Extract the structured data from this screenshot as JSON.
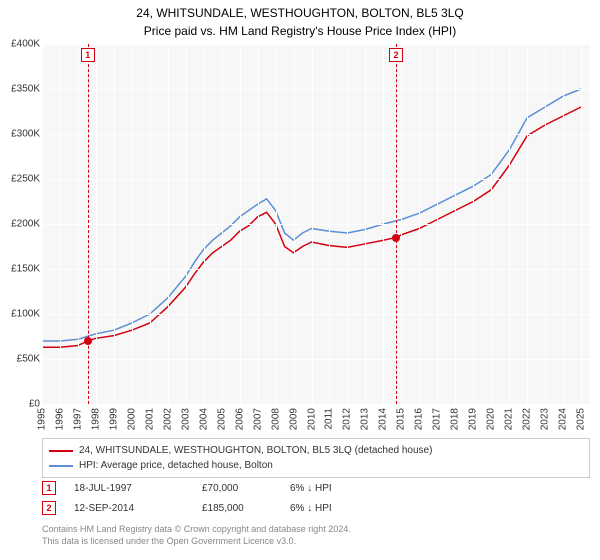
{
  "title": "24, WHITSUNDALE, WESTHOUGHTON, BOLTON, BL5 3LQ",
  "subtitle": "Price paid vs. HM Land Registry's House Price Index (HPI)",
  "chart": {
    "type": "line",
    "background_color": "#f7f7f7",
    "grid_color": "#ffffff",
    "xlim": [
      1995,
      2025.5
    ],
    "ylim": [
      0,
      400000
    ],
    "ytick_step": 50000,
    "yticks": [
      {
        "v": 0,
        "label": "£0"
      },
      {
        "v": 50000,
        "label": "£50K"
      },
      {
        "v": 100000,
        "label": "£100K"
      },
      {
        "v": 150000,
        "label": "£150K"
      },
      {
        "v": 200000,
        "label": "£200K"
      },
      {
        "v": 250000,
        "label": "£250K"
      },
      {
        "v": 300000,
        "label": "£300K"
      },
      {
        "v": 350000,
        "label": "£350K"
      },
      {
        "v": 400000,
        "label": "£400K"
      }
    ],
    "xticks": [
      1995,
      1996,
      1997,
      1998,
      1999,
      2000,
      2001,
      2002,
      2003,
      2004,
      2005,
      2006,
      2007,
      2008,
      2009,
      2010,
      2011,
      2012,
      2013,
      2014,
      2015,
      2016,
      2017,
      2018,
      2019,
      2020,
      2021,
      2022,
      2023,
      2024,
      2025
    ],
    "tick_fontsize": 10,
    "line_width": 1.5,
    "series": [
      {
        "name": "price_paid",
        "label": "24, WHITSUNDALE, WESTHOUGHTON, BOLTON, BL5 3LQ (detached house)",
        "color": "#d4000f",
        "x": [
          1995,
          1996,
          1997,
          1997.55,
          1998,
          1999,
          2000,
          2001,
          2002,
          2003,
          2003.5,
          2004,
          2004.5,
          2005,
          2005.5,
          2006,
          2006.5,
          2007,
          2007.5,
          2008,
          2008.5,
          2009,
          2009.5,
          2010,
          2011,
          2012,
          2013,
          2014,
          2014.7,
          2015,
          2016,
          2017,
          2018,
          2019,
          2020,
          2021,
          2022,
          2023,
          2024,
          2025
        ],
        "y": [
          63000,
          63000,
          65000,
          70000,
          73000,
          76000,
          82000,
          90000,
          108000,
          130000,
          145000,
          158000,
          168000,
          175000,
          182000,
          192000,
          198000,
          208000,
          213000,
          200000,
          175000,
          168000,
          175000,
          180000,
          176000,
          174000,
          178000,
          182000,
          185000,
          188000,
          195000,
          205000,
          215000,
          225000,
          238000,
          265000,
          298000,
          310000,
          320000,
          330000
        ]
      },
      {
        "name": "hpi",
        "label": "HPI: Average price, detached house, Bolton",
        "color": "#5b8fd6",
        "x": [
          1995,
          1996,
          1997,
          1998,
          1999,
          2000,
          2001,
          2002,
          2003,
          2003.5,
          2004,
          2004.5,
          2005,
          2005.5,
          2006,
          2006.5,
          2007,
          2007.5,
          2008,
          2008.5,
          2009,
          2009.5,
          2010,
          2011,
          2012,
          2013,
          2014,
          2015,
          2016,
          2017,
          2018,
          2019,
          2020,
          2021,
          2022,
          2023,
          2024,
          2025
        ],
        "y": [
          70000,
          70000,
          72000,
          78000,
          82000,
          90000,
          100000,
          118000,
          142000,
          158000,
          172000,
          182000,
          190000,
          198000,
          208000,
          215000,
          222000,
          228000,
          215000,
          190000,
          182000,
          190000,
          195000,
          192000,
          190000,
          194000,
          200000,
          205000,
          212000,
          222000,
          232000,
          242000,
          255000,
          282000,
          318000,
          330000,
          342000,
          350000
        ]
      }
    ],
    "sale_markers": [
      {
        "n": "1",
        "x": 1997.55,
        "y": 70000,
        "color": "#d4000f"
      },
      {
        "n": "2",
        "x": 2014.7,
        "y": 185000,
        "color": "#d4000f"
      }
    ]
  },
  "legend": {
    "items": [
      {
        "color": "#d4000f",
        "label": "24, WHITSUNDALE, WESTHOUGHTON, BOLTON, BL5 3LQ (detached house)"
      },
      {
        "color": "#5b8fd6",
        "label": "HPI: Average price, detached house, Bolton"
      }
    ]
  },
  "sales": [
    {
      "n": "1",
      "color": "#d4000f",
      "date": "18-JUL-1997",
      "price": "£70,000",
      "delta": "6% ↓ HPI"
    },
    {
      "n": "2",
      "color": "#d4000f",
      "date": "12-SEP-2014",
      "price": "£185,000",
      "delta": "6% ↓ HPI"
    }
  ],
  "attribution": {
    "line1": "Contains HM Land Registry data © Crown copyright and database right 2024.",
    "line2": "This data is licensed under the Open Government Licence v3.0."
  }
}
